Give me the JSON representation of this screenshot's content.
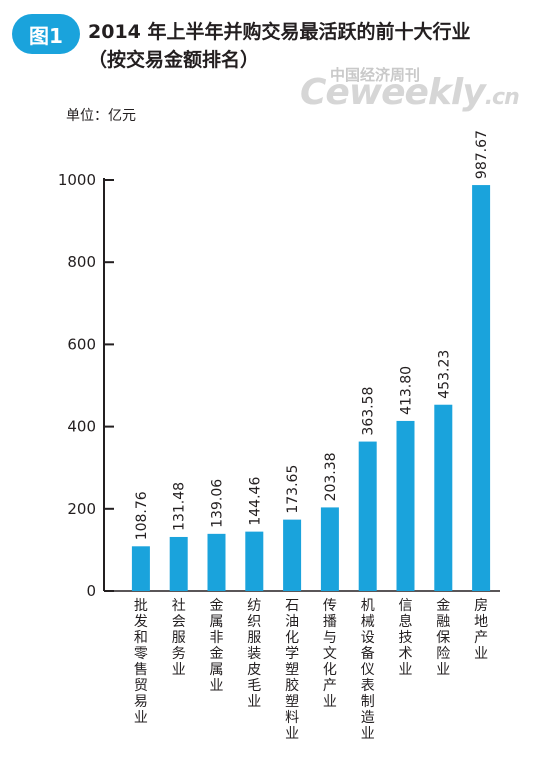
{
  "header": {
    "badge": "图1",
    "title_line1": "2014 年上半年并购交易最活跃的前十大行业",
    "title_line2": "（按交易金额排名）"
  },
  "watermark": {
    "cn": "中国经济周刊",
    "en": "Ceweekly",
    "suffix": ".cn"
  },
  "unit_label": "单位：亿元",
  "colors": {
    "bar": "#1aa3dc",
    "badge": "#1aa3dc",
    "axis": "#231f20"
  },
  "chart_data": {
    "type": "bar",
    "title": "2014 年上半年并购交易最活跃的前十大行业（按交易金额排名）",
    "ylabel": "单位：亿元",
    "ylim": [
      0,
      1000
    ],
    "yticks": [
      "0",
      "200",
      "400",
      "600",
      "800",
      "1000"
    ],
    "categories": [
      "批发和零售贸易业",
      "社会服务业",
      "金属非金属业",
      "纺织服装皮毛业",
      "石油化学塑胶塑料业",
      "传播与文化产业",
      "机械设备仪表制造业",
      "信息技术业",
      "金融保险业",
      "房地产业"
    ],
    "values": [
      108.76,
      131.48,
      139.06,
      144.46,
      173.65,
      203.38,
      363.58,
      413.8,
      453.23,
      987.67
    ],
    "value_labels": [
      "108.76",
      "131.48",
      "139.06",
      "144.46",
      "173.65",
      "203.38",
      "363.58",
      "413.80",
      "453.23",
      "987.67"
    ],
    "grid": false,
    "legend": "none"
  }
}
